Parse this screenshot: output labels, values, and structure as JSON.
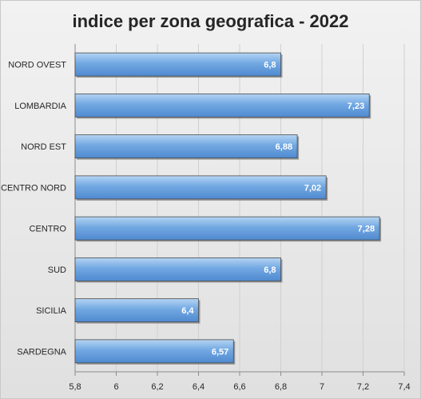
{
  "chart_data": {
    "type": "bar",
    "orientation": "horizontal",
    "title": "indice per zona geografica - 2022",
    "xlabel": "",
    "ylabel": "",
    "categories": [
      "NORD OVEST",
      "LOMBARDIA",
      "NORD EST",
      "CENTRO NORD",
      "CENTRO",
      "SUD",
      "SICILIA",
      "SARDEGNA"
    ],
    "values": [
      6.8,
      7.23,
      6.88,
      7.02,
      7.28,
      6.8,
      6.4,
      6.57
    ],
    "value_labels": [
      "6,8",
      "7,23",
      "6,88",
      "7,02",
      "7,28",
      "6,8",
      "6,4",
      "6,57"
    ],
    "xlim": [
      5.8,
      7.4
    ],
    "ticks": [
      5.8,
      6,
      6.2,
      6.4,
      6.6,
      6.8,
      7,
      7.2,
      7.4
    ],
    "tick_labels": [
      "5,8",
      "6",
      "6,2",
      "6,4",
      "6,6",
      "6,8",
      "7",
      "7,2",
      "7,4"
    ],
    "grid": true,
    "bar_color": "#6fa8e4",
    "bar_edge_color": "#4a4a4a"
  }
}
